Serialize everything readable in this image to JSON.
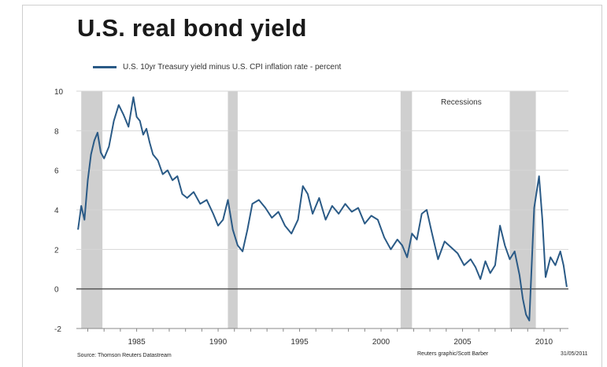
{
  "chart_data": {
    "type": "line",
    "title": "U.S. real bond yield",
    "legend": "U.S. 10yr Treasury yield minus U.S. CPI inflation rate - percent",
    "annotation": "Recessions",
    "source": "Source: Thomson Reuters Datastream",
    "credit": "Reuters graphic/Scott Barber",
    "date": "31/05/2011",
    "xlabel": "",
    "ylabel": "",
    "xlim": [
      1981.3,
      2011.5
    ],
    "ylim": [
      -2,
      10
    ],
    "x_ticks": [
      1985,
      1990,
      1995,
      2000,
      2005,
      2010
    ],
    "y_ticks": [
      -2,
      0,
      2,
      4,
      6,
      8,
      10
    ],
    "grid": "horizontal",
    "legend_position": "top-left",
    "line_color": "#2a5a86",
    "recession_color": "#cfcfcf",
    "recessions": [
      [
        1981.6,
        1982.9
      ],
      [
        1990.6,
        1991.2
      ],
      [
        2001.2,
        2001.9
      ],
      [
        2007.9,
        2009.5
      ]
    ],
    "series": [
      {
        "x": [
          1981.4,
          1981.6,
          1981.8,
          1982.0,
          1982.2,
          1982.4,
          1982.6,
          1982.8,
          1983.0,
          1983.3,
          1983.6,
          1983.9,
          1984.2,
          1984.5,
          1984.8,
          1985.0,
          1985.2,
          1985.4,
          1985.6,
          1985.8,
          1986.0,
          1986.3,
          1986.6,
          1986.9,
          1987.2,
          1987.5,
          1987.8,
          1988.1,
          1988.5,
          1988.9,
          1989.3,
          1989.7,
          1990.0,
          1990.3,
          1990.6,
          1990.9,
          1991.2,
          1991.5,
          1991.8,
          1992.1,
          1992.5,
          1992.9,
          1993.3,
          1993.7,
          1994.1,
          1994.5,
          1994.9,
          1995.2,
          1995.5,
          1995.8,
          1996.2,
          1996.6,
          1997.0,
          1997.4,
          1997.8,
          1998.2,
          1998.6,
          1999.0,
          1999.4,
          1999.8,
          2000.2,
          2000.6,
          2001.0,
          2001.3,
          2001.6,
          2001.9,
          2002.2,
          2002.5,
          2002.8,
          2003.1,
          2003.5,
          2003.9,
          2004.3,
          2004.7,
          2005.1,
          2005.5,
          2005.8,
          2006.1,
          2006.4,
          2006.7,
          2007.0,
          2007.3,
          2007.6,
          2007.9,
          2008.2,
          2008.5,
          2008.7,
          2008.9,
          2009.1,
          2009.4,
          2009.7,
          2009.9,
          2010.1,
          2010.4,
          2010.7,
          2011.0,
          2011.2,
          2011.4
        ],
        "values": [
          3.0,
          4.2,
          3.5,
          5.5,
          6.8,
          7.5,
          7.9,
          6.9,
          6.6,
          7.2,
          8.5,
          9.3,
          8.8,
          8.2,
          9.7,
          8.7,
          8.5,
          7.8,
          8.1,
          7.4,
          6.8,
          6.5,
          5.8,
          6.0,
          5.5,
          5.7,
          4.8,
          4.6,
          4.9,
          4.3,
          4.5,
          3.8,
          3.2,
          3.5,
          4.5,
          3.0,
          2.2,
          1.9,
          3.0,
          4.3,
          4.5,
          4.1,
          3.6,
          3.9,
          3.2,
          2.8,
          3.5,
          5.2,
          4.8,
          3.8,
          4.6,
          3.5,
          4.2,
          3.8,
          4.3,
          3.9,
          4.1,
          3.3,
          3.7,
          3.5,
          2.6,
          2.0,
          2.5,
          2.2,
          1.6,
          2.8,
          2.5,
          3.8,
          4.0,
          2.9,
          1.5,
          2.4,
          2.1,
          1.8,
          1.2,
          1.5,
          1.1,
          0.5,
          1.4,
          0.8,
          1.2,
          3.2,
          2.2,
          1.5,
          1.9,
          0.7,
          -0.5,
          -1.3,
          -1.6,
          4.1,
          5.7,
          3.5,
          0.6,
          1.6,
          1.2,
          1.9,
          1.2,
          0.1
        ]
      }
    ]
  }
}
